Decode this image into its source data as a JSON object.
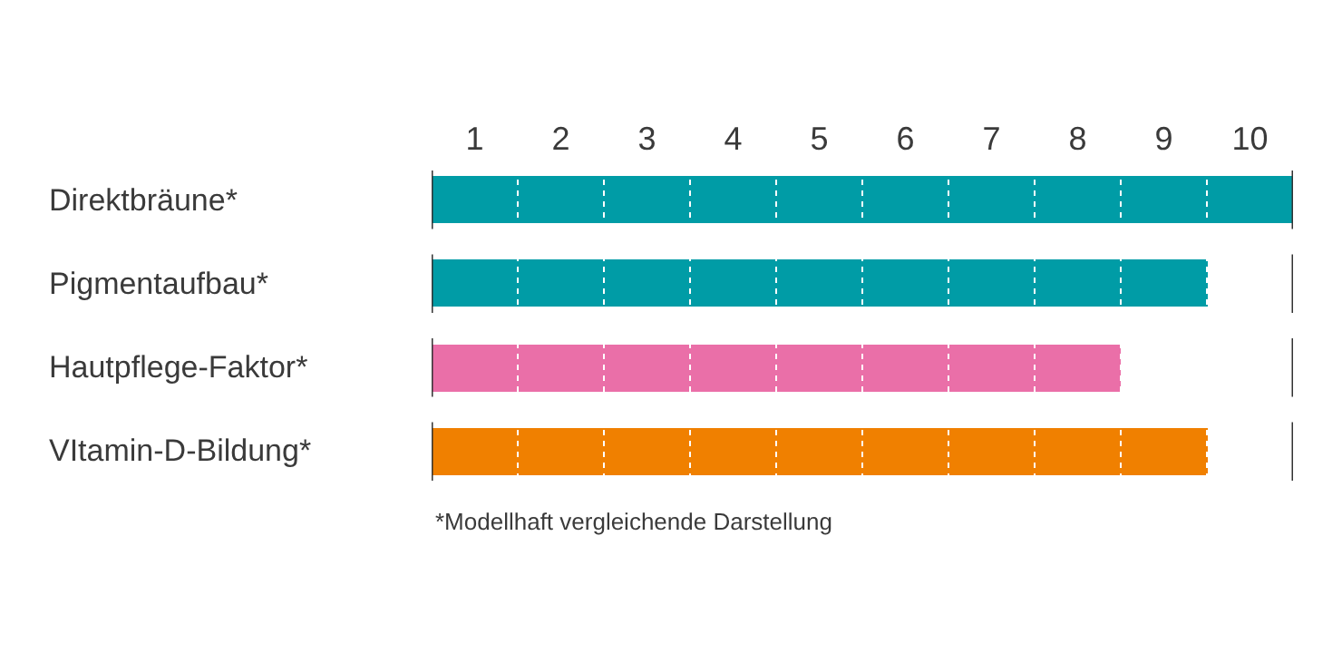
{
  "chart_data": {
    "type": "bar",
    "orientation": "horizontal",
    "categories": [
      "Direktbräune*",
      "Pigmentaufbau*",
      "Hautpflege-Faktor*",
      "VItamin-D-Bildung*"
    ],
    "values": [
      10,
      9,
      8,
      9
    ],
    "colors": [
      "#009ca6",
      "#009ca6",
      "#ea6fa8",
      "#f08000"
    ],
    "xlim": [
      0,
      10
    ],
    "xticks": [
      {
        "value": 0.5,
        "label": "1"
      },
      {
        "value": 1.5,
        "label": "2"
      },
      {
        "value": 2.5,
        "label": "3"
      },
      {
        "value": 3.5,
        "label": "4"
      },
      {
        "value": 4.5,
        "label": "5"
      },
      {
        "value": 5.5,
        "label": "6"
      },
      {
        "value": 6.5,
        "label": "7"
      },
      {
        "value": 7.5,
        "label": "8"
      },
      {
        "value": 8.5,
        "label": "9"
      },
      {
        "value": 9.5,
        "label": "10"
      },
      {
        "value": 1,
        "label": null
      },
      {
        "value": 2,
        "label": null
      },
      {
        "value": 3,
        "label": null
      },
      {
        "value": 4,
        "label": null
      },
      {
        "value": 5,
        "label": null
      },
      {
        "value": 6,
        "label": null
      },
      {
        "value": 7,
        "label": null
      },
      {
        "value": 8,
        "label": null
      },
      {
        "value": 9,
        "label": null
      }
    ],
    "grid": "x",
    "annotations": [
      "*Modellhaft vergleichende Darstellung"
    ]
  }
}
